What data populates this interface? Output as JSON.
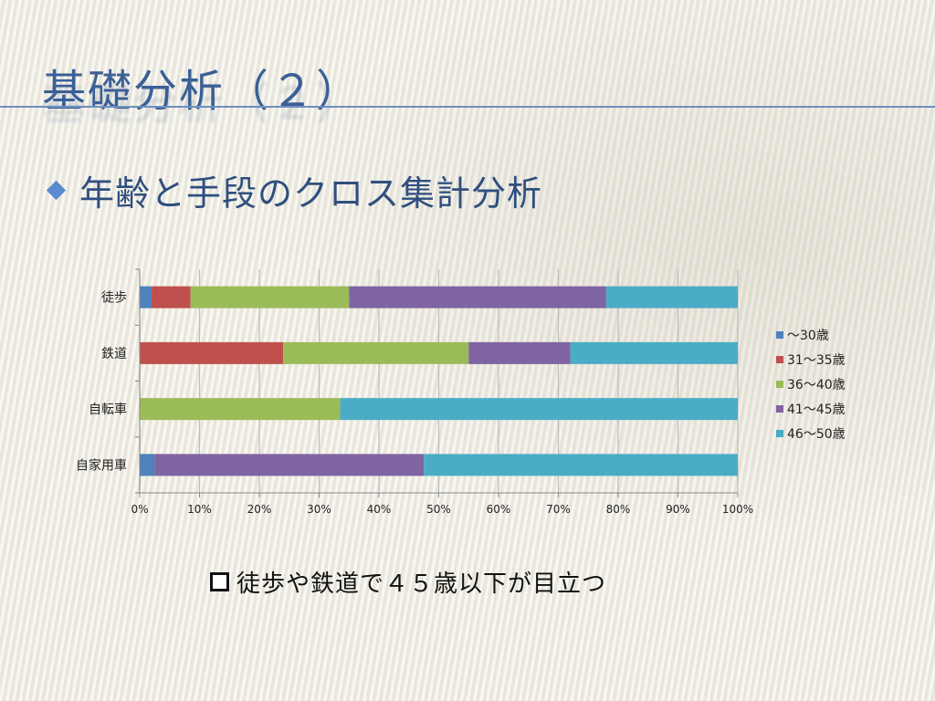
{
  "slide": {
    "title": "基礎分析（２）",
    "bullet": "年齢と手段のクロス集計分析",
    "note": "徒歩や鉄道で４５歳以下が目立つ"
  },
  "colors": {
    "title": "#3b5f96",
    "series": [
      "#4f81bd",
      "#c0504d",
      "#9bbb59",
      "#8064a2",
      "#4bacc6"
    ]
  },
  "chart_data": {
    "type": "bar",
    "orientation": "horizontal",
    "stacked": "percent",
    "categories": [
      "徒歩",
      "鉄道",
      "自転車",
      "自家用車"
    ],
    "series": [
      {
        "name": "～30歳",
        "values": [
          2,
          0,
          0,
          2.5
        ]
      },
      {
        "name": "31～35歳",
        "values": [
          6.5,
          24,
          0,
          0
        ]
      },
      {
        "name": "36～40歳",
        "values": [
          26.5,
          31,
          33.5,
          0
        ]
      },
      {
        "name": "41～45歳",
        "values": [
          43,
          17,
          0,
          45
        ]
      },
      {
        "name": "46～50歳",
        "values": [
          22,
          28,
          66.5,
          52.5
        ]
      }
    ],
    "x_ticks": [
      "0%",
      "10%",
      "20%",
      "30%",
      "40%",
      "50%",
      "60%",
      "70%",
      "80%",
      "90%",
      "100%"
    ],
    "xlim": [
      0,
      100
    ],
    "grid": true,
    "legend_position": "right"
  }
}
